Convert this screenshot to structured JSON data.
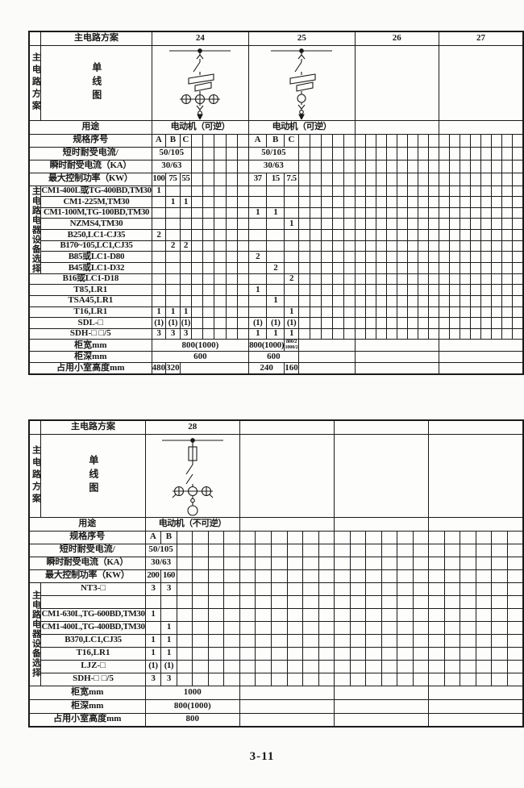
{
  "page": {
    "number": "3-11"
  },
  "colors": {
    "line": "#1a1a1a",
    "background": "#fbfbfa"
  },
  "tables": [
    {
      "name": "schemes-24-27",
      "cols_per_section": 8,
      "header": {
        "label": "主电路方案",
        "schemes": [
          "24",
          "25",
          "26",
          "27"
        ]
      },
      "side_label": "主电路方案",
      "diagram_label": "单线图",
      "diagrams": [
        "scheme24",
        "scheme25",
        "",
        ""
      ],
      "usage": {
        "label": "用途",
        "values": [
          "电动机（可逆）",
          "电动机（可逆）",
          "",
          ""
        ]
      },
      "spec": {
        "label": "规格序号",
        "letters": [
          [
            "A",
            "B",
            "C"
          ],
          [
            "A",
            "B",
            "C"
          ],
          [],
          []
        ]
      },
      "merged_rows": [
        {
          "label": "短时耐受电流/",
          "span": 3,
          "values": [
            "50/105",
            "50/105",
            "",
            ""
          ]
        },
        {
          "label": "瞬时耐受电流（KA）",
          "span": 3,
          "values": [
            "30/63",
            "30/63",
            "",
            ""
          ]
        }
      ],
      "power": {
        "label": "最大控制功率（KW）",
        "cells": [
          [
            "100",
            "75",
            "55"
          ],
          [
            "37",
            "15",
            "7.5"
          ],
          [],
          []
        ]
      },
      "bracket": {
        "label": "主电路电器设备选择",
        "rows": 8
      },
      "equipment": [
        {
          "label": "CM1-400L或TG-400BD,TM30",
          "cells": [
            [
              "1"
            ],
            [],
            [],
            []
          ]
        },
        {
          "label": "CM1-225M,TM30",
          "cells": [
            [
              "",
              "1",
              "1"
            ],
            [],
            [],
            []
          ]
        },
        {
          "label": "CM1-100M,TG-100BD,TM30",
          "cells": [
            [],
            [
              "1",
              "1"
            ],
            [],
            []
          ]
        },
        {
          "label": "NZMS4,TM30",
          "cells": [
            [],
            [
              "",
              "",
              "1"
            ],
            [],
            []
          ]
        },
        {
          "label": "B250,LC1-CJ35",
          "cells": [
            [
              "2"
            ],
            [],
            [],
            []
          ]
        },
        {
          "label": "B170~105,LC1,CJ35",
          "cells": [
            [
              "",
              "2",
              "2"
            ],
            [],
            [],
            []
          ]
        },
        {
          "label": "B85或LC1-D80",
          "cells": [
            [],
            [
              "2"
            ],
            [],
            []
          ]
        },
        {
          "label": "B45或LC1-D32",
          "cells": [
            [],
            [
              "",
              "2"
            ],
            [],
            []
          ]
        },
        {
          "label": "B16或LC1-D18",
          "cells": [
            [],
            [
              "",
              "",
              "2"
            ],
            [],
            []
          ]
        },
        {
          "label": "T85,LR1",
          "cells": [
            [],
            [
              "1"
            ],
            [],
            []
          ]
        },
        {
          "label": "TSA45,LR1",
          "cells": [
            [],
            [
              "",
              "1"
            ],
            [],
            []
          ]
        },
        {
          "label": "T16,LR1",
          "cells": [
            [
              "1",
              "1",
              "1"
            ],
            [
              "",
              "",
              "1"
            ],
            [],
            []
          ]
        },
        {
          "label": "SDL-□",
          "cells": [
            [
              "(1)",
              "(1)",
              "(1)"
            ],
            [
              "(1)",
              "(1)",
              "(1)"
            ],
            [],
            []
          ]
        },
        {
          "label": "SDH-□ □/5",
          "cells": [
            [
              "3",
              "3",
              "3"
            ],
            [
              "1",
              "1",
              "1"
            ],
            [],
            []
          ]
        }
      ],
      "footer": [
        {
          "label": "柜宽mm",
          "sections": [
            [
              {
                "c": 8,
                "t": "800(1000)"
              }
            ],
            [
              {
                "c": 2,
                "t": "800(1000)",
                "small": true
              },
              {
                "c": 1,
                "t": "800/2|1000/2",
                "stack": true
              },
              {
                "c": 5,
                "t": ""
              }
            ],
            [
              {
                "c": 8,
                "t": ""
              }
            ],
            [
              {
                "c": 8,
                "t": ""
              }
            ]
          ]
        },
        {
          "label": "柜深mm",
          "sections": [
            [
              {
                "c": 8,
                "t": "600"
              }
            ],
            [
              {
                "c": 3,
                "t": "600"
              },
              {
                "c": 5,
                "t": ""
              }
            ],
            [
              {
                "c": 8,
                "t": ""
              }
            ],
            [
              {
                "c": 8,
                "t": ""
              }
            ]
          ]
        },
        {
          "label": "占用小室高度mm",
          "sections": [
            [
              {
                "c": 1,
                "t": "480"
              },
              {
                "c": 1,
                "t": "320"
              },
              {
                "c": 6,
                "t": ""
              }
            ],
            [
              {
                "c": 2,
                "t": "240"
              },
              {
                "c": 1,
                "t": "160"
              },
              {
                "c": 5,
                "t": ""
              }
            ],
            [
              {
                "c": 8,
                "t": ""
              }
            ],
            [
              {
                "c": 8,
                "t": ""
              }
            ]
          ]
        }
      ]
    },
    {
      "name": "scheme-28",
      "cols_per_section": 6,
      "header": {
        "label": "主电路方案",
        "schemes": [
          "28",
          "",
          "",
          ""
        ]
      },
      "side_label": "主电路方案",
      "diagram_label": "单线图",
      "diagrams": [
        "scheme28",
        "",
        "",
        ""
      ],
      "usage": {
        "label": "用途",
        "values": [
          "电动机（不可逆）",
          "",
          "",
          ""
        ]
      },
      "spec": {
        "label": "规格序号",
        "letters": [
          [
            "A",
            "B"
          ],
          [],
          [],
          []
        ]
      },
      "merged_rows": [
        {
          "label": "短时耐受电流/",
          "span": 2,
          "values": [
            "50/105",
            "",
            "",
            ""
          ]
        },
        {
          "label": "瞬时耐受电流（KA）",
          "span": 2,
          "values": [
            "30/63",
            "",
            "",
            ""
          ]
        }
      ],
      "power": {
        "label": "最大控制功率（KW）",
        "cells": [
          [
            "200",
            "160"
          ],
          [],
          [],
          []
        ]
      },
      "bracket": {
        "label": "主电路电器设备选择",
        "rows": 8
      },
      "equipment": [
        {
          "label": "NT3-□",
          "cells": [
            [
              "3",
              "3"
            ],
            [],
            [],
            []
          ]
        },
        {
          "label": "",
          "cells": [
            [],
            [],
            [],
            []
          ]
        },
        {
          "label": "CM1-630L,TG-600BD,TM30",
          "cells": [
            [
              "1"
            ],
            [],
            [],
            []
          ]
        },
        {
          "label": "CM1-400L,TG-400BD,TM30",
          "cells": [
            [
              "",
              "1"
            ],
            [],
            [],
            []
          ]
        },
        {
          "label": "B370,LC1,CJ35",
          "cells": [
            [
              "1",
              "1"
            ],
            [],
            [],
            []
          ]
        },
        {
          "label": "T16,LR1",
          "cells": [
            [
              "1",
              "1"
            ],
            [],
            [],
            []
          ]
        },
        {
          "label": "LJZ-□",
          "cells": [
            [
              "(1)",
              "(1)"
            ],
            [],
            [],
            []
          ]
        },
        {
          "label": "SDH-□ □/5",
          "cells": [
            [
              "3",
              "3"
            ],
            [],
            [],
            []
          ]
        }
      ],
      "footer": [
        {
          "label": "柜宽mm",
          "sections": [
            [
              {
                "c": 6,
                "t": "1000"
              }
            ],
            [
              {
                "c": 6,
                "t": ""
              }
            ],
            [
              {
                "c": 6,
                "t": ""
              }
            ],
            [
              {
                "c": 6,
                "t": ""
              }
            ]
          ]
        },
        {
          "label": "柜深mm",
          "sections": [
            [
              {
                "c": 6,
                "t": "800(1000)"
              }
            ],
            [
              {
                "c": 6,
                "t": ""
              }
            ],
            [
              {
                "c": 6,
                "t": ""
              }
            ],
            [
              {
                "c": 6,
                "t": ""
              }
            ]
          ]
        },
        {
          "label": "占用小室高度mm",
          "sections": [
            [
              {
                "c": 6,
                "t": "800"
              }
            ],
            [
              {
                "c": 6,
                "t": ""
              }
            ],
            [
              {
                "c": 6,
                "t": ""
              }
            ],
            [
              {
                "c": 6,
                "t": ""
              }
            ]
          ]
        }
      ]
    }
  ]
}
